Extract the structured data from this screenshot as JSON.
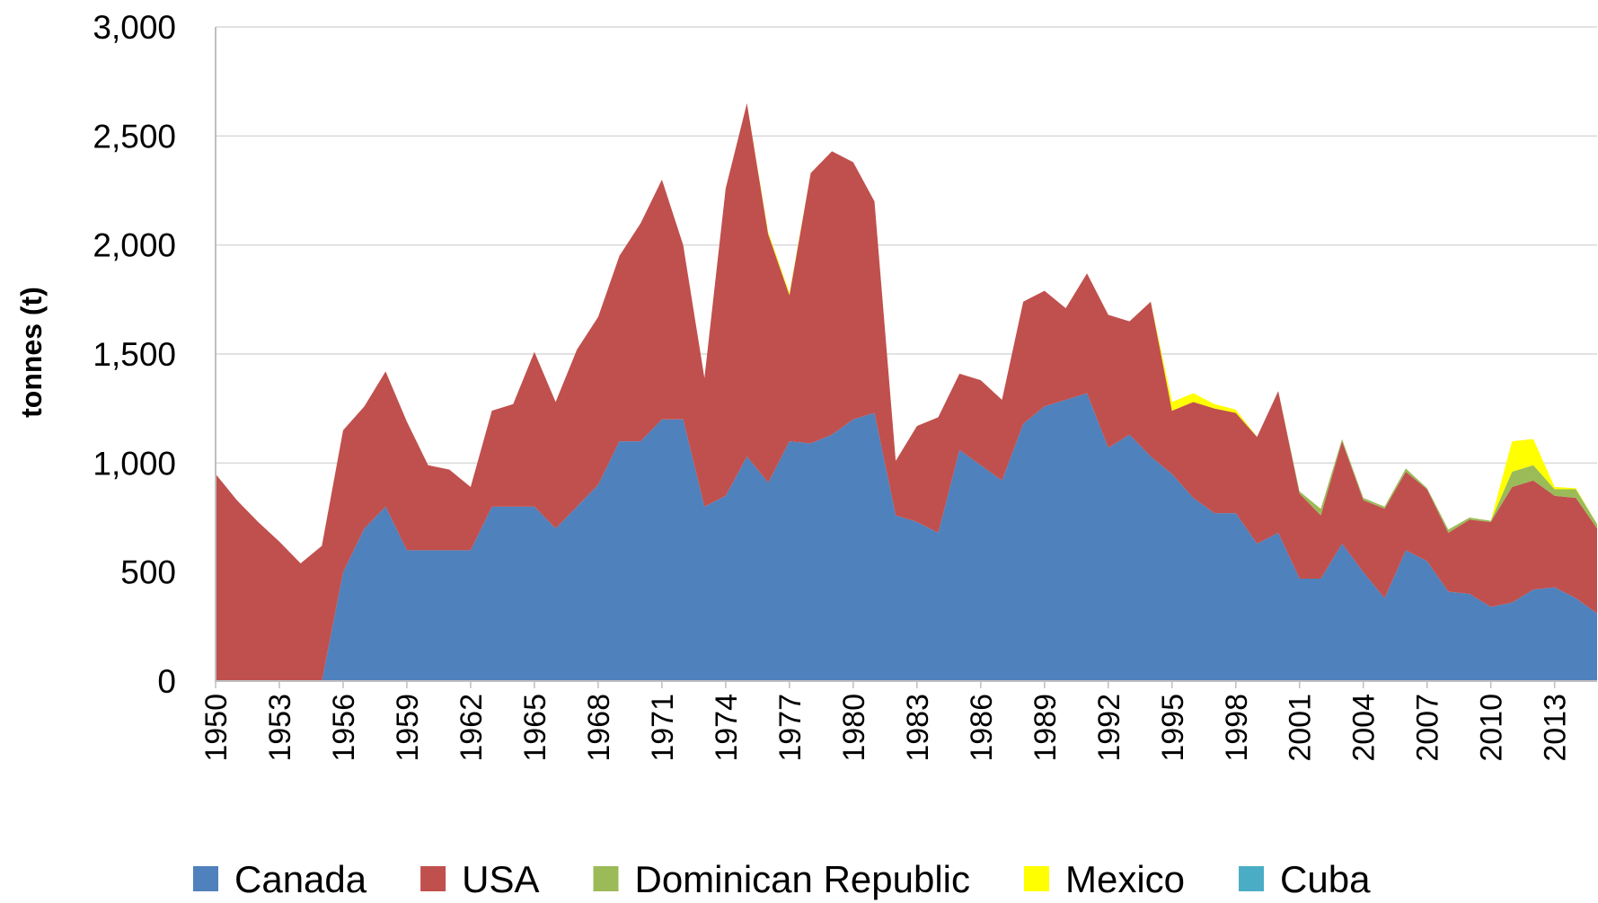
{
  "chart_data": {
    "type": "stacked-area",
    "y_label": "tonnes (t)",
    "x": [
      1950,
      1951,
      1952,
      1953,
      1954,
      1955,
      1956,
      1957,
      1958,
      1959,
      1960,
      1961,
      1962,
      1963,
      1964,
      1965,
      1966,
      1967,
      1968,
      1969,
      1970,
      1971,
      1972,
      1973,
      1974,
      1975,
      1976,
      1977,
      1978,
      1979,
      1980,
      1981,
      1982,
      1983,
      1984,
      1985,
      1986,
      1987,
      1988,
      1989,
      1990,
      1991,
      1992,
      1993,
      1994,
      1995,
      1996,
      1997,
      1998,
      1999,
      2000,
      2001,
      2002,
      2003,
      2004,
      2005,
      2006,
      2007,
      2008,
      2009,
      2010,
      2011,
      2012,
      2013,
      2014,
      2015
    ],
    "xlim": [
      1950,
      2015
    ],
    "xticks": [
      1950,
      1953,
      1956,
      1959,
      1962,
      1965,
      1968,
      1971,
      1974,
      1977,
      1980,
      1983,
      1986,
      1989,
      1992,
      1995,
      1998,
      2001,
      2004,
      2007,
      2010,
      2013
    ],
    "ylim": [
      0,
      3000
    ],
    "yticks": [
      0,
      {
        "value": 500,
        "label": "500"
      },
      {
        "value": 1000,
        "label": "1,000"
      },
      {
        "value": 1500,
        "label": "1,500"
      },
      {
        "value": 2000,
        "label": "2,000"
      },
      {
        "value": 2500,
        "label": "2,500"
      },
      {
        "value": 3000,
        "label": "3,000"
      }
    ],
    "grid": true,
    "legend": "bottom",
    "series": [
      {
        "name": "Canada",
        "color": "#4f81bd",
        "values": [
          0,
          0,
          0,
          0,
          0,
          0,
          500,
          700,
          800,
          600,
          600,
          600,
          600,
          800,
          800,
          800,
          700,
          800,
          900,
          1100,
          1100,
          1200,
          1200,
          800,
          850,
          1030,
          910,
          1100,
          1090,
          1130,
          1200,
          1230,
          760,
          730,
          680,
          1060,
          990,
          920,
          1180,
          1260,
          1290,
          1320,
          1070,
          1130,
          1030,
          950,
          840,
          770,
          770,
          630,
          680,
          470,
          470,
          630,
          500,
          380,
          600,
          550,
          410,
          400,
          340,
          360,
          420,
          430,
          380,
          310
        ]
      },
      {
        "name": "USA",
        "color": "#c0504d",
        "values": [
          950,
          830,
          730,
          640,
          540,
          620,
          650,
          560,
          620,
          590,
          390,
          370,
          290,
          440,
          470,
          710,
          580,
          720,
          770,
          850,
          1000,
          1100,
          800,
          590,
          1410,
          1620,
          1140,
          670,
          1240,
          1300,
          1180,
          970,
          250,
          440,
          530,
          350,
          390,
          370,
          560,
          530,
          420,
          550,
          610,
          520,
          710,
          290,
          440,
          480,
          460,
          490,
          650,
          390,
          290,
          470,
          330,
          410,
          360,
          330,
          270,
          340,
          390,
          530,
          500,
          420,
          460,
          390
        ]
      },
      {
        "name": "Dominican Republic",
        "color": "#9bbb59",
        "values": [
          0,
          0,
          0,
          0,
          0,
          0,
          0,
          0,
          0,
          0,
          0,
          0,
          0,
          0,
          0,
          0,
          0,
          0,
          0,
          0,
          0,
          0,
          0,
          0,
          0,
          0,
          0,
          0,
          0,
          0,
          0,
          0,
          0,
          0,
          0,
          0,
          0,
          0,
          0,
          0,
          0,
          0,
          0,
          0,
          0,
          0,
          0,
          0,
          0,
          0,
          0,
          10,
          30,
          10,
          10,
          10,
          15,
          5,
          15,
          10,
          5,
          70,
          70,
          30,
          40,
          20
        ]
      },
      {
        "name": "Mexico",
        "color": "#ffff00",
        "values": [
          0,
          0,
          0,
          0,
          0,
          0,
          0,
          0,
          0,
          0,
          0,
          0,
          0,
          0,
          0,
          0,
          0,
          0,
          0,
          0,
          0,
          0,
          0,
          0,
          0,
          0,
          10,
          10,
          0,
          0,
          0,
          0,
          0,
          0,
          0,
          0,
          0,
          0,
          0,
          0,
          0,
          0,
          0,
          0,
          0,
          40,
          40,
          20,
          15,
          0,
          0,
          0,
          0,
          0,
          0,
          0,
          0,
          0,
          0,
          0,
          0,
          140,
          120,
          10,
          5,
          0
        ]
      },
      {
        "name": "Cuba",
        "color": "#4bacc6",
        "values": [
          0,
          0,
          0,
          0,
          0,
          0,
          0,
          0,
          0,
          0,
          0,
          0,
          0,
          0,
          0,
          0,
          0,
          0,
          0,
          0,
          0,
          0,
          0,
          0,
          0,
          0,
          0,
          0,
          0,
          0,
          0,
          0,
          0,
          0,
          0,
          0,
          0,
          0,
          0,
          0,
          0,
          0,
          0,
          0,
          0,
          0,
          0,
          0,
          0,
          0,
          0,
          0,
          0,
          0,
          0,
          0,
          0,
          0,
          0,
          0,
          0,
          0,
          0,
          0,
          0,
          0
        ]
      }
    ]
  }
}
